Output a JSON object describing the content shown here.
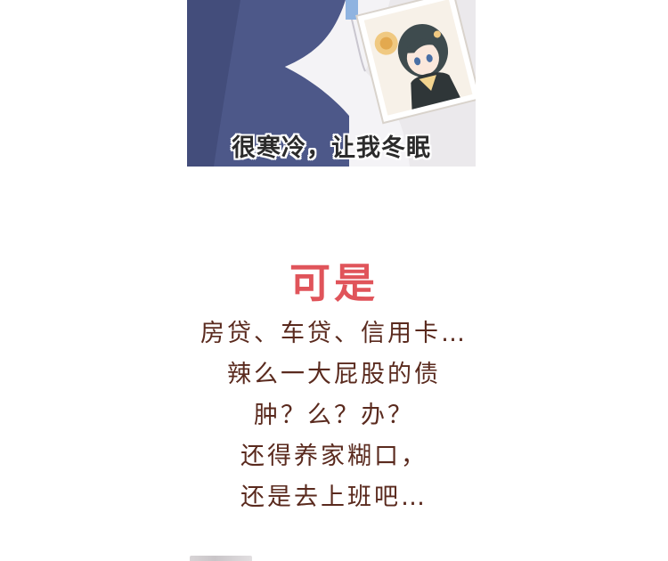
{
  "panel": {
    "caption": "很寒冷，让我冬眠",
    "colors": {
      "blanket": "#4a5585",
      "wall": "#e9e7ea",
      "poster_hair": "#3c4a4c",
      "poster_accent": "#f2d7a0"
    }
  },
  "headline": {
    "text": "可是",
    "color": "#e0545a"
  },
  "body": {
    "color": "#5a2a1e",
    "lines": [
      "房贷、车贷、信用卡…",
      "辣么一大屁股的债",
      "肿？么？办？",
      "还得养家糊口，",
      "还是去上班吧…"
    ]
  }
}
